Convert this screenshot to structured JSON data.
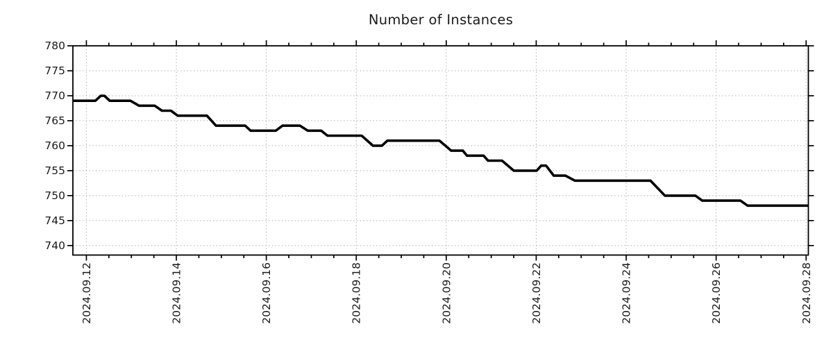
{
  "chart_data": {
    "type": "line",
    "title": "Number of Instances",
    "x_axis": {
      "tick_labels": [
        "2024.09.12",
        "2024.09.14",
        "2024.09.16",
        "2024.09.18",
        "2024.09.20",
        "2024.09.22",
        "2024.09.24",
        "2024.09.26",
        "2024.09.28"
      ],
      "tick_positions_days": [
        0,
        2,
        4,
        6,
        8,
        10,
        12,
        14,
        16
      ],
      "minor_tick_interval_days": 0.5,
      "xlim_days": [
        -0.3,
        16.05
      ]
    },
    "y_axis": {
      "tick_values": [
        740,
        745,
        750,
        755,
        760,
        765,
        770,
        775,
        780
      ],
      "ylim": [
        738.1,
        780
      ]
    },
    "grid": {
      "style": "dotted",
      "major_x": true,
      "major_y": true
    },
    "colors": {
      "line": "#000000",
      "grid": "#b0b0b0",
      "frame": "#000000",
      "text": "#1a1a1a",
      "background": "#ffffff"
    },
    "series": [
      {
        "name": "instances",
        "points_day_value": [
          [
            -0.3,
            769
          ],
          [
            0.2,
            769
          ],
          [
            0.32,
            770
          ],
          [
            0.4,
            770
          ],
          [
            0.52,
            769
          ],
          [
            0.98,
            769
          ],
          [
            1.17,
            768
          ],
          [
            1.52,
            768
          ],
          [
            1.68,
            767
          ],
          [
            1.88,
            767
          ],
          [
            2.03,
            766
          ],
          [
            2.68,
            766
          ],
          [
            2.88,
            764
          ],
          [
            3.53,
            764
          ],
          [
            3.65,
            763
          ],
          [
            4.21,
            763
          ],
          [
            4.36,
            764
          ],
          [
            4.75,
            764
          ],
          [
            4.92,
            763
          ],
          [
            5.22,
            763
          ],
          [
            5.36,
            762
          ],
          [
            6.12,
            762
          ],
          [
            6.37,
            760
          ],
          [
            6.57,
            760
          ],
          [
            6.69,
            761
          ],
          [
            7.85,
            761
          ],
          [
            8.11,
            759
          ],
          [
            8.37,
            759
          ],
          [
            8.46,
            758
          ],
          [
            8.83,
            758
          ],
          [
            8.93,
            757
          ],
          [
            9.24,
            757
          ],
          [
            9.5,
            755
          ],
          [
            10.01,
            755
          ],
          [
            10.11,
            756
          ],
          [
            10.22,
            756
          ],
          [
            10.39,
            754
          ],
          [
            10.65,
            754
          ],
          [
            10.86,
            753
          ],
          [
            12.54,
            753
          ],
          [
            12.86,
            750
          ],
          [
            13.54,
            750
          ],
          [
            13.69,
            749
          ],
          [
            14.54,
            749
          ],
          [
            14.7,
            748
          ],
          [
            16.05,
            748
          ]
        ]
      }
    ]
  }
}
